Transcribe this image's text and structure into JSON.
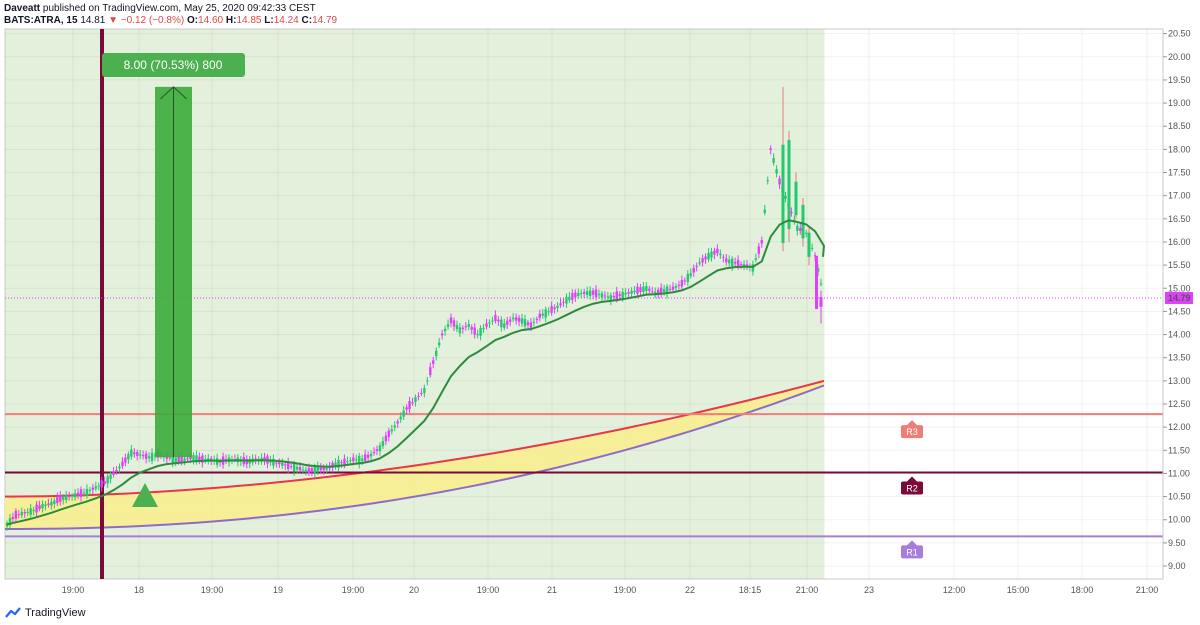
{
  "header": {
    "author": "Daveatt",
    "published": "published on TradingView.com, May 25, 2020 09:42:33 CEST",
    "symbol": "BATS:ATRA, 15",
    "last": "14.81",
    "change": "▼ −0.12 (−0.8%)",
    "o_label": "O:",
    "o_value": "14.60",
    "h_label": "H:",
    "h_value": "14.85",
    "l_label": "L:",
    "l_value": "14.24",
    "c_label": "C:",
    "c_value": "14.79"
  },
  "logo": {
    "text": "TradingView",
    "icon": "tradingview-logo-icon"
  },
  "colors": {
    "up": "#26c86d",
    "down": "#e040fb",
    "session_bg": "#e3f0dc",
    "ema_fast": "#2e8b3e",
    "cloud_fill": "#f7ee8f",
    "cloud_red": "#e8364a",
    "cloud_purple": "#8e6bc9",
    "r3": "#f07d78",
    "r2": "#7a0a3a",
    "r1": "#a77ddb",
    "last_price": "#e040fb",
    "measure": "#3aac3a"
  },
  "chart_data": {
    "type": "candlestick",
    "symbol": "BATS:ATRA",
    "interval": "15",
    "y_axis": {
      "range": [
        8.72,
        20.6
      ],
      "ticks": [
        "9.00",
        "9.50",
        "10.00",
        "10.50",
        "11.00",
        "11.50",
        "12.00",
        "12.50",
        "13.00",
        "13.50",
        "14.00",
        "14.50",
        "15.00",
        "15.50",
        "16.00",
        "16.50",
        "17.00",
        "17.50",
        "18.00",
        "18.50",
        "19.00",
        "19.50",
        "20.00",
        "20.50"
      ]
    },
    "x_axis": {
      "ticks": [
        "19:00",
        "18",
        "19:00",
        "19",
        "19:00",
        "20",
        "19:00",
        "21",
        "19:00",
        "22",
        "18:15",
        "21:00",
        "23",
        "12:00",
        "15:00",
        "18:00",
        "21:00"
      ]
    },
    "candles_close_path": [
      [
        0,
        9.9
      ],
      [
        3,
        10.1
      ],
      [
        6,
        10.15
      ],
      [
        9,
        10.2
      ],
      [
        12,
        10.3
      ],
      [
        15,
        10.35
      ],
      [
        18,
        10.45
      ],
      [
        21,
        10.5
      ],
      [
        24,
        10.55
      ],
      [
        27,
        10.6
      ],
      [
        30,
        10.7
      ],
      [
        33,
        10.8
      ],
      [
        36,
        11.0
      ],
      [
        39,
        11.2
      ],
      [
        42,
        11.45
      ],
      [
        45,
        11.4
      ],
      [
        48,
        11.35
      ],
      [
        51,
        11.4
      ],
      [
        54,
        11.35
      ],
      [
        57,
        11.3
      ],
      [
        60,
        11.3
      ],
      [
        63,
        11.35
      ],
      [
        66,
        11.3
      ],
      [
        69,
        11.3
      ],
      [
        72,
        11.25
      ],
      [
        75,
        11.3
      ],
      [
        78,
        11.3
      ],
      [
        81,
        11.25
      ],
      [
        84,
        11.3
      ],
      [
        87,
        11.3
      ],
      [
        90,
        11.25
      ],
      [
        93,
        11.2
      ],
      [
        96,
        11.15
      ],
      [
        99,
        11.1
      ],
      [
        102,
        11.05
      ],
      [
        105,
        11.1
      ],
      [
        108,
        11.1
      ],
      [
        111,
        11.2
      ],
      [
        114,
        11.25
      ],
      [
        117,
        11.3
      ],
      [
        120,
        11.3
      ],
      [
        123,
        11.4
      ],
      [
        126,
        11.55
      ],
      [
        129,
        11.85
      ],
      [
        132,
        12.1
      ],
      [
        135,
        12.4
      ],
      [
        138,
        12.6
      ],
      [
        141,
        12.8
      ],
      [
        144,
        13.4
      ],
      [
        147,
        14.0
      ],
      [
        150,
        14.3
      ],
      [
        153,
        14.1
      ],
      [
        156,
        14.2
      ],
      [
        159,
        14.0
      ],
      [
        162,
        14.2
      ],
      [
        165,
        14.35
      ],
      [
        168,
        14.2
      ],
      [
        171,
        14.35
      ],
      [
        174,
        14.3
      ],
      [
        177,
        14.2
      ],
      [
        180,
        14.4
      ],
      [
        183,
        14.5
      ],
      [
        186,
        14.6
      ],
      [
        189,
        14.75
      ],
      [
        192,
        14.85
      ],
      [
        195,
        14.9
      ],
      [
        198,
        14.9
      ],
      [
        201,
        14.85
      ],
      [
        204,
        14.8
      ],
      [
        207,
        14.85
      ],
      [
        210,
        14.9
      ],
      [
        213,
        14.95
      ],
      [
        216,
        15.0
      ],
      [
        219,
        14.9
      ],
      [
        222,
        14.95
      ],
      [
        225,
        15.0
      ],
      [
        228,
        15.1
      ],
      [
        231,
        15.3
      ],
      [
        234,
        15.55
      ],
      [
        237,
        15.7
      ],
      [
        240,
        15.8
      ],
      [
        243,
        15.6
      ],
      [
        246,
        15.55
      ],
      [
        249,
        15.5
      ],
      [
        252,
        15.45
      ],
      [
        255,
        16.0
      ],
      [
        258,
        18.0
      ],
      [
        261,
        17.3
      ],
      [
        264,
        16.8
      ],
      [
        267,
        16.3
      ],
      [
        270,
        16.2
      ],
      [
        273,
        15.7
      ],
      [
        276,
        14.8
      ]
    ],
    "ema_line": "fast EMA following price",
    "cloud": {
      "top_start": 10.5,
      "top_end": 13.0,
      "bottom_start": 9.8,
      "bottom_end": 12.9
    },
    "levels": [
      {
        "name": "R3",
        "value": 12.28
      },
      {
        "name": "R2",
        "value": 11.02
      },
      {
        "name": "R1",
        "value": 9.64
      }
    ],
    "last_price": "14.79",
    "measure": {
      "label": "8.00 (70.53%) 800",
      "from_price": 11.35,
      "to_price": 19.35
    },
    "signal": "buy-triangle"
  }
}
